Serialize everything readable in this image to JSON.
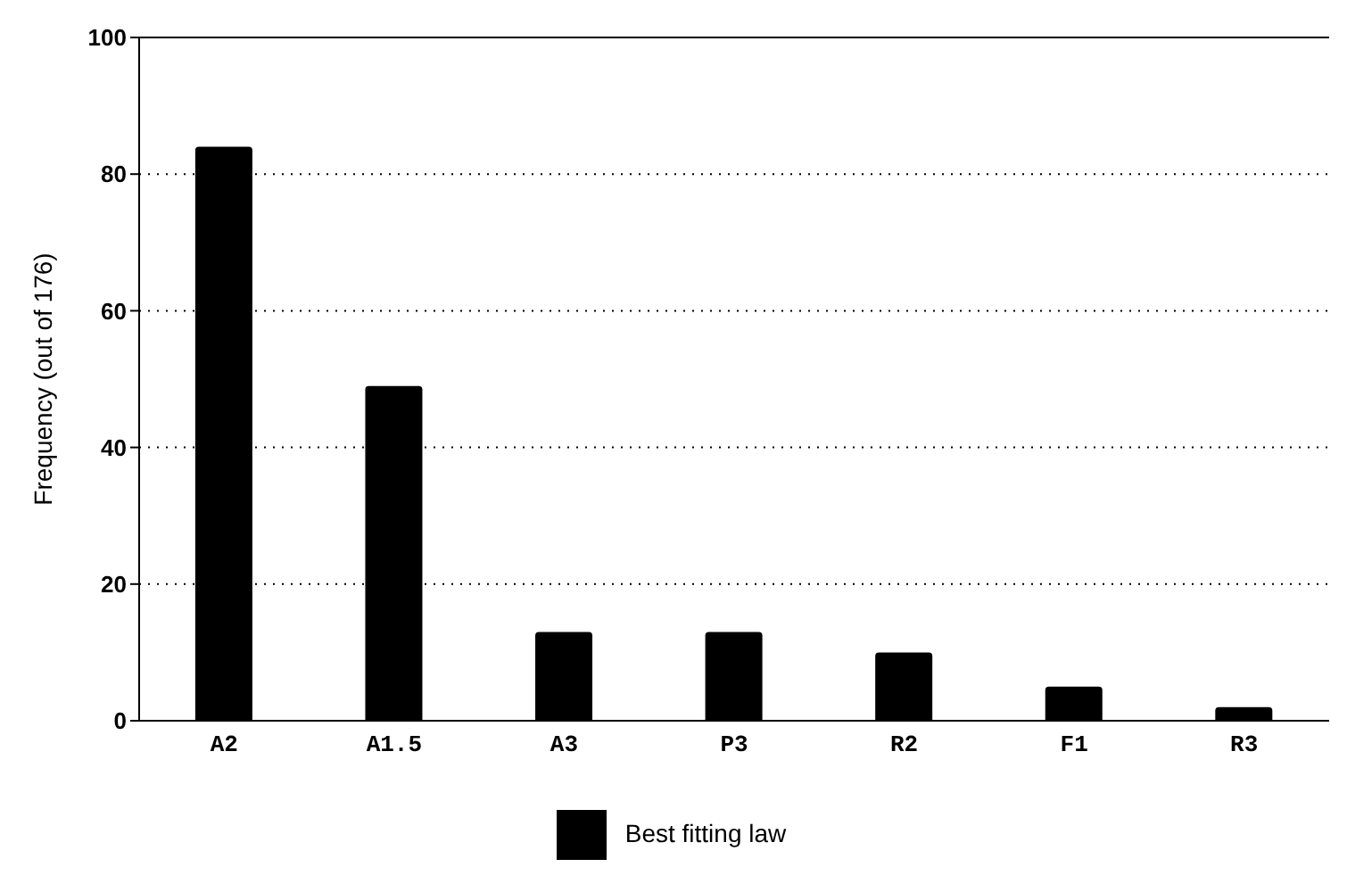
{
  "chart_data": {
    "type": "bar",
    "ylabel": "Frequency (out of 176)",
    "categories": [
      "A2",
      "A1.5",
      "A3",
      "P3",
      "R2",
      "F1",
      "R3"
    ],
    "series": [
      {
        "name": "Best fitting law",
        "color": "#000000",
        "values": [
          84,
          49,
          13,
          13,
          10,
          5,
          2
        ]
      }
    ],
    "ylim": [
      0,
      100
    ],
    "yticks": [
      0,
      20,
      40,
      60,
      80,
      100
    ],
    "grid": "y",
    "legend": "bottom"
  }
}
